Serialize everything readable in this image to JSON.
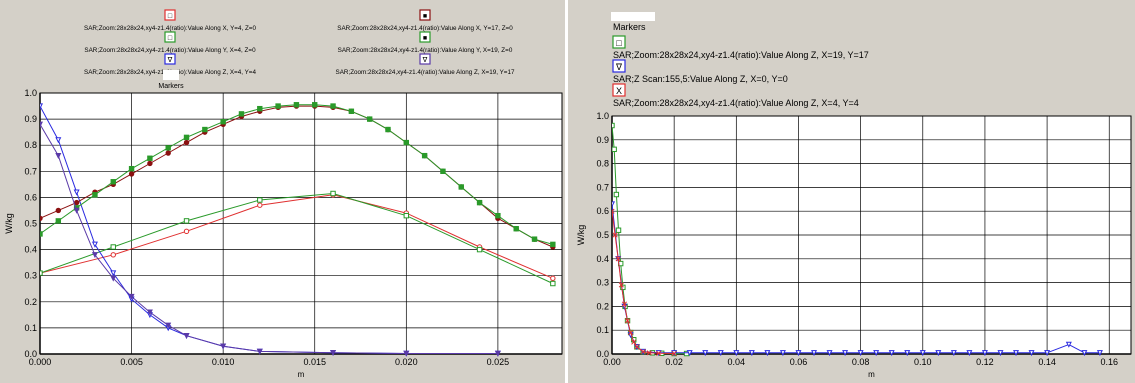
{
  "colors": {
    "panel_bg": "#d4d0c8",
    "plot_bg": "#ffffff",
    "grid": "#000000",
    "red": "#e03030",
    "green": "#2a9a2a",
    "blue": "#2a2ae0",
    "darkred": "#8b1010",
    "purple": "#5a3aa8"
  },
  "chart_data": [
    {
      "type": "line",
      "xlabel": "m",
      "ylabel": "W/kg",
      "xlim": [
        0,
        0.0285
      ],
      "ylim": [
        0,
        1.0
      ],
      "grid": true,
      "legend_placement": "top",
      "x_ticks": [
        "0.000",
        "0.005",
        "0.010",
        "0.015",
        "0.020",
        "0.025"
      ],
      "x_tick_values": [
        0,
        0.005,
        0.01,
        0.015,
        0.02,
        0.025
      ],
      "y_ticks": [
        "0.0",
        "0.1",
        "0.2",
        "0.3",
        "0.4",
        "0.5",
        "0.6",
        "0.7",
        "0.8",
        "0.9",
        "1.0"
      ],
      "y_tick_values": [
        0,
        0.1,
        0.2,
        0.3,
        0.4,
        0.5,
        0.6,
        0.7,
        0.8,
        0.9,
        1.0
      ],
      "legend_title": "Markers",
      "legend": [
        {
          "label": "SAR;Zoom:28x28x24,xy4-z1.4(ratio):Value Along  X,  Y=4,  Z=0",
          "color_key": "red",
          "glyph": "□"
        },
        {
          "label": "SAR;Zoom:28x28x24,xy4-z1.4(ratio):Value Along  Y,  X=4,  Z=0",
          "color_key": "green",
          "glyph": "□"
        },
        {
          "label": "SAR;Zoom:28x28x24,xy4-z1.4(ratio):Value Along  Z,  X=4,  Y=4",
          "color_key": "blue",
          "glyph": "∇"
        },
        {
          "label": "SAR;Zoom:28x28x24,xy4-z1.4(ratio):Value Along  X,  Y=17,  Z=0",
          "color_key": "darkred",
          "glyph": "■"
        },
        {
          "label": "SAR;Zoom:28x28x24,xy4-z1.4(ratio):Value Along  Y,  X=19,  Z=0",
          "color_key": "green",
          "glyph": "■"
        },
        {
          "label": "SAR;Zoom:28x28x24,xy4-z1.4(ratio):Value Along  Z,  X=19,  Y=17",
          "color_key": "purple",
          "glyph": "∇"
        }
      ],
      "series": [
        {
          "color_key": "red",
          "marker": "open-circle",
          "x": [
            0,
            0.004,
            0.008,
            0.012,
            0.016,
            0.02,
            0.024,
            0.028
          ],
          "y": [
            0.31,
            0.38,
            0.47,
            0.57,
            0.61,
            0.54,
            0.41,
            0.29
          ]
        },
        {
          "color_key": "green",
          "marker": "open-square",
          "x": [
            0,
            0.004,
            0.008,
            0.012,
            0.016,
            0.02,
            0.024,
            0.028
          ],
          "y": [
            0.31,
            0.41,
            0.51,
            0.59,
            0.615,
            0.53,
            0.4,
            0.27
          ]
        },
        {
          "color_key": "blue",
          "marker": "open-triangle",
          "x": [
            0,
            0.001,
            0.002,
            0.003,
            0.004,
            0.005,
            0.006,
            0.007,
            0.008,
            0.01,
            0.012,
            0.016,
            0.02,
            0.025
          ],
          "y": [
            0.95,
            0.82,
            0.62,
            0.42,
            0.31,
            0.21,
            0.15,
            0.1,
            0.07,
            0.03,
            0.01,
            0.005,
            0.002,
            0.002
          ]
        },
        {
          "color_key": "darkred",
          "marker": "filled-circle",
          "x": [
            0,
            0.001,
            0.002,
            0.003,
            0.004,
            0.005,
            0.006,
            0.007,
            0.008,
            0.009,
            0.01,
            0.011,
            0.012,
            0.013,
            0.014,
            0.015,
            0.016,
            0.017,
            0.018,
            0.019,
            0.02,
            0.021,
            0.022,
            0.023,
            0.024,
            0.025,
            0.026,
            0.027,
            0.028
          ],
          "y": [
            0.52,
            0.55,
            0.58,
            0.62,
            0.65,
            0.69,
            0.73,
            0.77,
            0.81,
            0.85,
            0.88,
            0.91,
            0.93,
            0.945,
            0.95,
            0.95,
            0.945,
            0.93,
            0.9,
            0.86,
            0.81,
            0.76,
            0.7,
            0.64,
            0.58,
            0.52,
            0.48,
            0.44,
            0.41
          ]
        },
        {
          "color_key": "green",
          "marker": "filled-square",
          "x": [
            0,
            0.001,
            0.002,
            0.003,
            0.004,
            0.005,
            0.006,
            0.007,
            0.008,
            0.009,
            0.01,
            0.011,
            0.012,
            0.013,
            0.014,
            0.015,
            0.016,
            0.017,
            0.018,
            0.019,
            0.02,
            0.021,
            0.022,
            0.023,
            0.024,
            0.025,
            0.026,
            0.027,
            0.028
          ],
          "y": [
            0.46,
            0.51,
            0.56,
            0.61,
            0.66,
            0.71,
            0.75,
            0.79,
            0.83,
            0.86,
            0.89,
            0.92,
            0.94,
            0.95,
            0.955,
            0.955,
            0.95,
            0.93,
            0.9,
            0.86,
            0.81,
            0.76,
            0.7,
            0.64,
            0.58,
            0.53,
            0.48,
            0.44,
            0.42
          ]
        },
        {
          "color_key": "purple",
          "marker": "filled-triangle",
          "x": [
            0,
            0.001,
            0.002,
            0.003,
            0.004,
            0.005,
            0.006,
            0.007,
            0.008,
            0.01,
            0.012,
            0.016,
            0.02,
            0.025
          ],
          "y": [
            0.88,
            0.76,
            0.55,
            0.38,
            0.29,
            0.22,
            0.16,
            0.11,
            0.07,
            0.03,
            0.01,
            0.005,
            0.002,
            0.002
          ]
        }
      ]
    },
    {
      "type": "line",
      "xlabel": "m",
      "ylabel": "W/kg",
      "xlim": [
        0,
        0.167
      ],
      "ylim": [
        0,
        1.0
      ],
      "grid": true,
      "legend_placement": "top",
      "x_ticks": [
        "0.00",
        "0.02",
        "0.04",
        "0.06",
        "0.08",
        "0.10",
        "0.12",
        "0.14",
        "0.16"
      ],
      "x_tick_values": [
        0,
        0.02,
        0.04,
        0.06,
        0.08,
        0.1,
        0.12,
        0.14,
        0.16
      ],
      "y_ticks": [
        "0.0",
        "0.1",
        "0.2",
        "0.3",
        "0.4",
        "0.5",
        "0.6",
        "0.7",
        "0.8",
        "0.9",
        "1.0"
      ],
      "y_tick_values": [
        0,
        0.1,
        0.2,
        0.3,
        0.4,
        0.5,
        0.6,
        0.7,
        0.8,
        0.9,
        1.0
      ],
      "legend_title": "Markers",
      "legend": [
        {
          "label": "SAR;Zoom:28x28x24,xy4-z1.4(ratio):Value Along Z, X=19, Y=17",
          "color_key": "green",
          "glyph": "□"
        },
        {
          "label": "SAR;Z Scan:155,5:Value Along Z, X=0, Y=0",
          "color_key": "blue",
          "glyph": "∇"
        },
        {
          "label": "SAR;Zoom:28x28x24,xy4-z1.4(ratio):Value Along Z, X=4, Y=4",
          "color_key": "red",
          "glyph": "X"
        }
      ],
      "series": [
        {
          "color_key": "green",
          "marker": "open-square",
          "x": [
            0,
            0.0007,
            0.0014,
            0.0021,
            0.0028,
            0.0035,
            0.0042,
            0.005,
            0.006,
            0.007,
            0.008,
            0.01,
            0.013,
            0.016,
            0.02,
            0.024
          ],
          "y": [
            0.96,
            0.86,
            0.67,
            0.52,
            0.38,
            0.28,
            0.2,
            0.14,
            0.09,
            0.06,
            0.03,
            0.01,
            0.005,
            0.003,
            0.002,
            0.002
          ]
        },
        {
          "color_key": "blue",
          "marker": "open-triangle",
          "x": [
            0,
            0.002,
            0.004,
            0.006,
            0.008,
            0.01,
            0.015,
            0.02,
            0.025,
            0.03,
            0.035,
            0.04,
            0.045,
            0.05,
            0.055,
            0.06,
            0.065,
            0.07,
            0.075,
            0.08,
            0.085,
            0.09,
            0.095,
            0.1,
            0.105,
            0.11,
            0.115,
            0.12,
            0.125,
            0.13,
            0.135,
            0.14,
            0.147,
            0.152,
            0.157
          ],
          "y": [
            0.63,
            0.4,
            0.2,
            0.08,
            0.03,
            0.01,
            0.005,
            0.005,
            0.005,
            0.005,
            0.005,
            0.005,
            0.005,
            0.005,
            0.005,
            0.005,
            0.005,
            0.005,
            0.005,
            0.005,
            0.005,
            0.005,
            0.005,
            0.005,
            0.005,
            0.005,
            0.005,
            0.005,
            0.005,
            0.005,
            0.005,
            0.005,
            0.04,
            0.005,
            0.005
          ]
        },
        {
          "color_key": "red",
          "marker": "x",
          "x": [
            0,
            0.001,
            0.002,
            0.003,
            0.004,
            0.005,
            0.006,
            0.007,
            0.008,
            0.01,
            0.012,
            0.015,
            0.02
          ],
          "y": [
            0.6,
            0.5,
            0.4,
            0.29,
            0.21,
            0.14,
            0.09,
            0.05,
            0.03,
            0.01,
            0.005,
            0.003,
            0.002
          ]
        }
      ]
    }
  ]
}
